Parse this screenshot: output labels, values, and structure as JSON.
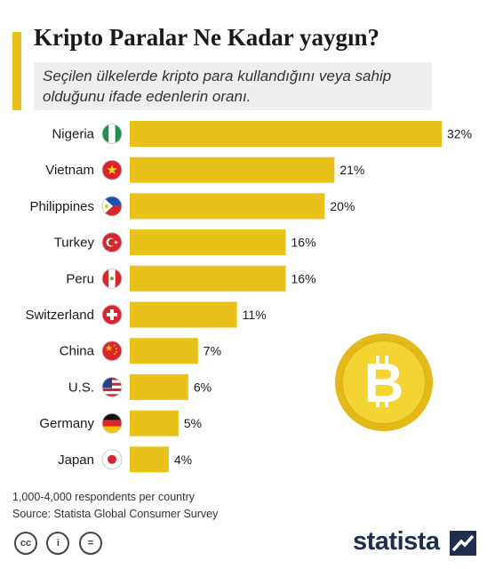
{
  "title": "Kripto Paralar Ne Kadar yaygın?",
  "subtitle": "Seçilen ülkelerde kripto para kullandığını veya sahip olduğunu ifade edenlerin oranı.",
  "colors": {
    "bar": "#e8c21a",
    "coin": "#e8c21a",
    "coin_inner": "#f3d433",
    "text": "#1a1a1a",
    "brand": "#1f2d4e"
  },
  "chart_data": {
    "type": "bar",
    "orientation": "horizontal",
    "categories": [
      "Nigeria",
      "Vietnam",
      "Philippines",
      "Turkey",
      "Peru",
      "Switzerland",
      "China",
      "U.S.",
      "Germany",
      "Japan"
    ],
    "values": [
      32,
      21,
      20,
      16,
      16,
      11,
      7,
      6,
      5,
      4
    ],
    "value_labels": [
      "32%",
      "21%",
      "20%",
      "16%",
      "16%",
      "11%",
      "7%",
      "6%",
      "5%",
      "4%"
    ],
    "flag_icons": [
      "nigeria-flag-icon",
      "vietnam-flag-icon",
      "philippines-flag-icon",
      "turkey-flag-icon",
      "peru-flag-icon",
      "switzerland-flag-icon",
      "china-flag-icon",
      "us-flag-icon",
      "germany-flag-icon",
      "japan-flag-icon"
    ],
    "xlim": [
      0,
      32
    ],
    "grid": false,
    "legend": "none",
    "decoration": "bitcoin-coin-icon"
  },
  "footnote": "1,000-4,000 respondents per country",
  "source": "Source: Statista Global Consumer Survey",
  "license_icons": [
    "cc-icon",
    "by-icon",
    "nd-icon"
  ],
  "license_glyphs": [
    "cc",
    "i",
    "="
  ],
  "logo": "statista"
}
